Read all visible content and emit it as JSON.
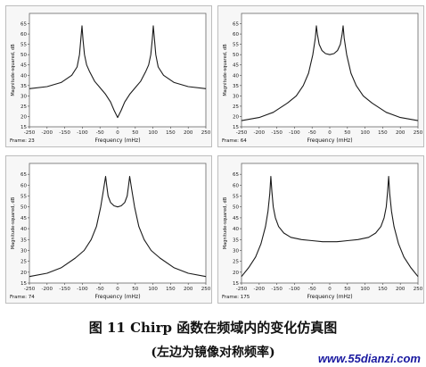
{
  "chart_data": [
    {
      "type": "line",
      "frame_label": "Frame: 23",
      "xlabel": "Frequency (mHz)",
      "ylabel": "Magnitude-squared, dB",
      "xlim": [
        -250,
        250
      ],
      "ylim": [
        15,
        70
      ],
      "xticks": [
        -250,
        -200,
        -150,
        -100,
        -50,
        0,
        50,
        100,
        150,
        200,
        250
      ],
      "yticks": [
        15,
        20,
        25,
        30,
        35,
        40,
        45,
        50,
        55,
        60,
        65
      ],
      "series": [
        {
          "x": [
            -250,
            -200,
            -160,
            -130,
            -115,
            -108,
            -104,
            -101,
            -98,
            -94,
            -88,
            -80,
            -65,
            -50,
            -35,
            -20,
            -10,
            0,
            10,
            20,
            35,
            50,
            65,
            80,
            88,
            94,
            98,
            101,
            104,
            108,
            115,
            130,
            160,
            200,
            250
          ],
          "y": [
            33.5,
            34.5,
            36.5,
            40,
            44,
            50,
            58,
            64,
            57,
            50,
            45,
            42,
            37,
            34,
            31,
            27,
            23,
            19.5,
            23,
            27,
            31,
            34,
            37,
            42,
            45,
            50,
            57,
            64,
            58,
            50,
            44,
            40,
            36.5,
            34.5,
            33.5
          ]
        }
      ]
    },
    {
      "type": "line",
      "frame_label": "Frame: 64",
      "xlabel": "Frequency (mHz)",
      "ylabel": "Magnitude-squared, dB",
      "xlim": [
        -250,
        250
      ],
      "ylim": [
        15,
        70
      ],
      "xticks": [
        -250,
        -200,
        -150,
        -100,
        -50,
        0,
        50,
        100,
        150,
        200,
        250
      ],
      "yticks": [
        15,
        20,
        25,
        30,
        35,
        40,
        45,
        50,
        55,
        60,
        65
      ],
      "series": [
        {
          "x": [
            -250,
            -200,
            -160,
            -120,
            -95,
            -75,
            -60,
            -48,
            -41,
            -38,
            -35,
            -30,
            -22,
            -12,
            0,
            12,
            22,
            30,
            35,
            38,
            41,
            48,
            60,
            75,
            95,
            120,
            160,
            200,
            250
          ],
          "y": [
            18,
            19.5,
            22,
            26.5,
            30,
            35,
            41,
            50,
            58,
            64,
            60,
            55,
            52,
            50.5,
            50,
            50.5,
            52,
            55,
            60,
            64,
            58,
            50,
            41,
            35,
            30,
            26.5,
            22,
            19.5,
            18
          ]
        }
      ]
    },
    {
      "type": "line",
      "frame_label": "Frame: 74",
      "xlabel": "Frequency (mHz)",
      "ylabel": "Magnitude-squared, dB",
      "xlim": [
        -250,
        250
      ],
      "ylim": [
        15,
        70
      ],
      "xticks": [
        -250,
        -200,
        -150,
        -100,
        -50,
        0,
        50,
        100,
        150,
        200,
        250
      ],
      "yticks": [
        15,
        20,
        25,
        30,
        35,
        40,
        45,
        50,
        55,
        60,
        65
      ],
      "series": [
        {
          "x": [
            -250,
            -200,
            -160,
            -120,
            -95,
            -75,
            -60,
            -48,
            -40,
            -34,
            -31,
            -27,
            -20,
            -10,
            0,
            10,
            20,
            27,
            31,
            34,
            40,
            48,
            60,
            75,
            95,
            120,
            160,
            200,
            250
          ],
          "y": [
            18,
            19.5,
            22,
            26.5,
            30,
            35,
            41,
            50,
            58,
            64,
            60,
            55,
            52,
            50.5,
            50,
            50.5,
            52,
            55,
            60,
            64,
            58,
            50,
            41,
            35,
            30,
            26.5,
            22,
            19.5,
            18
          ]
        }
      ]
    },
    {
      "type": "line",
      "frame_label": "Frame: 175",
      "xlabel": "Frequency (mHz)",
      "ylabel": "Magnitude-squared, dB",
      "xlim": [
        -250,
        250
      ],
      "ylim": [
        15,
        70
      ],
      "xticks": [
        -250,
        -200,
        -150,
        -100,
        -50,
        0,
        50,
        100,
        150,
        200,
        250
      ],
      "yticks": [
        15,
        20,
        25,
        30,
        35,
        40,
        45,
        50,
        55,
        60,
        65
      ],
      "series": [
        {
          "x": [
            -250,
            -230,
            -210,
            -195,
            -182,
            -175,
            -170,
            -167,
            -164,
            -160,
            -154,
            -145,
            -130,
            -110,
            -80,
            -50,
            -20,
            0,
            20,
            50,
            80,
            110,
            130,
            145,
            154,
            160,
            164,
            167,
            170,
            175,
            182,
            195,
            210,
            230,
            250
          ],
          "y": [
            18,
            22,
            27,
            33,
            41,
            48,
            56,
            64,
            57,
            50,
            45,
            41,
            38,
            36,
            35,
            34.5,
            34,
            34,
            34,
            34.5,
            35,
            36,
            38,
            41,
            45,
            50,
            57,
            64,
            56,
            48,
            41,
            33,
            27,
            22,
            18
          ]
        }
      ]
    }
  ],
  "caption": {
    "line1": "图 11   Chirp 函数在频域内的变化仿真图",
    "line2": "(左边为镜像对称频率)"
  },
  "watermark": "www.55dianzi.com",
  "colors": {
    "curve": "#1a1a1a",
    "plot_bg": "#f7f7f7",
    "watermark": "#1a1aa0"
  }
}
